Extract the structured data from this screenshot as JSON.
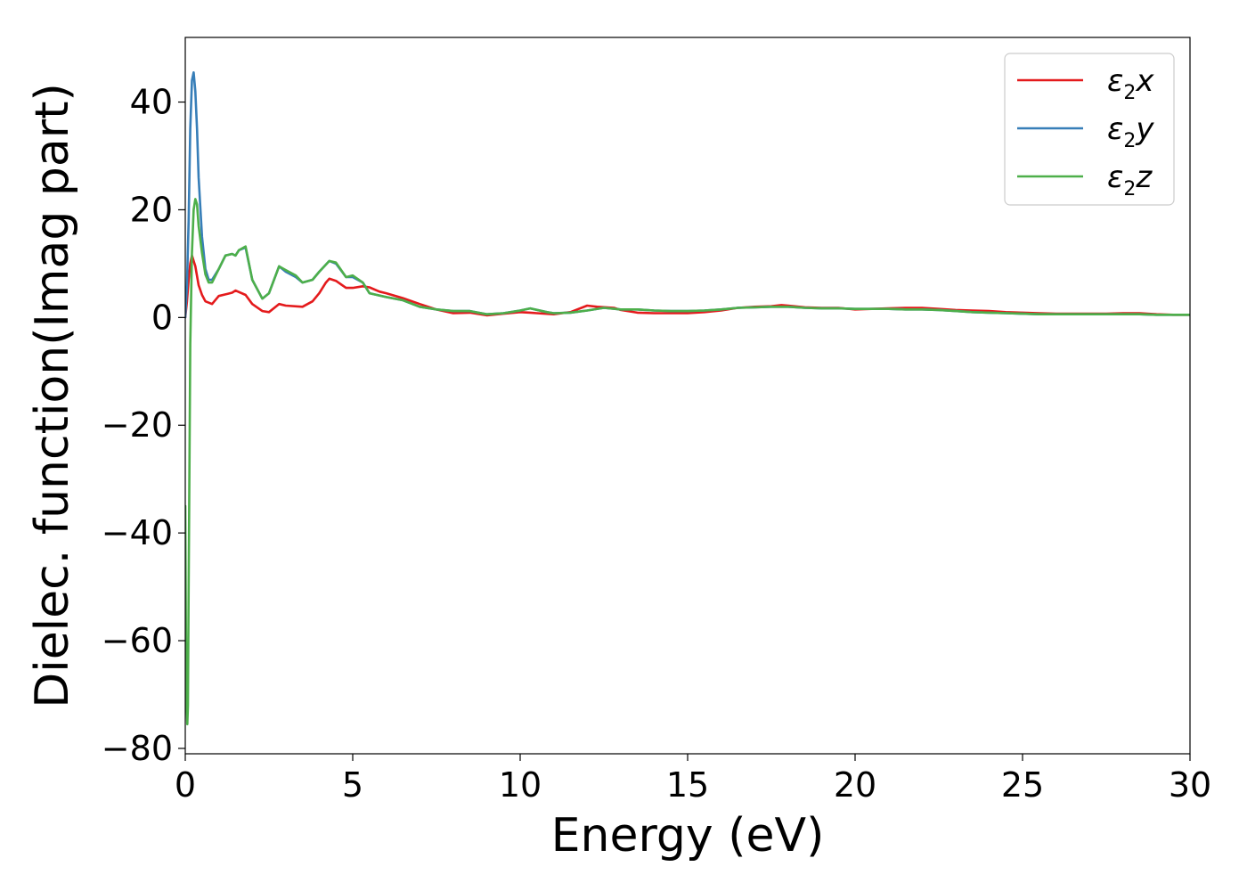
{
  "chart_data": {
    "type": "line",
    "title": "",
    "xlabel": "Energy (eV)",
    "ylabel": "Dielec. function(Imag part)",
    "xlim": [
      0,
      30
    ],
    "ylim": [
      -81,
      52
    ],
    "xticks": [
      0,
      5,
      10,
      15,
      20,
      25,
      30
    ],
    "yticks": [
      -80,
      -60,
      -40,
      -20,
      0,
      20,
      40
    ],
    "xtick_labels": [
      "0",
      "5",
      "10",
      "15",
      "20",
      "25",
      "30"
    ],
    "ytick_labels": [
      "−80",
      "−60",
      "−40",
      "−20",
      "0",
      "20",
      "40"
    ],
    "grid": false,
    "legend_position": "top-right",
    "series": [
      {
        "name": "ε₂x",
        "label_main": "ε",
        "label_sub": "2",
        "label_var": "x",
        "color": "#e41a1c",
        "x": [
          0.0,
          0.05,
          0.1,
          0.15,
          0.2,
          0.3,
          0.4,
          0.5,
          0.6,
          0.8,
          1.0,
          1.2,
          1.4,
          1.5,
          1.8,
          2.0,
          2.3,
          2.5,
          2.8,
          3.0,
          3.5,
          3.8,
          4.0,
          4.2,
          4.3,
          4.5,
          4.8,
          5.0,
          5.3,
          5.5,
          5.8,
          6.0,
          6.5,
          7.0,
          7.5,
          8.0,
          8.5,
          9.0,
          9.5,
          10.0,
          10.3,
          10.5,
          11.0,
          11.5,
          12.0,
          12.3,
          12.8,
          13.0,
          13.5,
          14.0,
          14.5,
          15.0,
          15.5,
          16.0,
          16.5,
          17.0,
          17.5,
          17.8,
          18.0,
          18.5,
          19.0,
          19.5,
          20.0,
          20.5,
          21.0,
          21.5,
          22.0,
          22.5,
          23.0,
          23.5,
          24.0,
          24.5,
          25.0,
          25.5,
          26.0,
          26.5,
          27.0,
          27.5,
          28.0,
          28.5,
          29.0,
          29.5,
          30.0
        ],
        "y": [
          0.0,
          3.0,
          7.0,
          10.0,
          11.5,
          9.5,
          6.0,
          4.2,
          3.0,
          2.5,
          4.0,
          4.3,
          4.6,
          5.0,
          4.2,
          2.5,
          1.2,
          1.0,
          2.5,
          2.2,
          2.0,
          3.0,
          4.5,
          6.5,
          7.2,
          6.8,
          5.5,
          5.5,
          5.8,
          5.6,
          4.8,
          4.5,
          3.6,
          2.5,
          1.5,
          0.8,
          0.9,
          0.4,
          0.7,
          1.0,
          0.9,
          0.8,
          0.6,
          1.0,
          2.2,
          2.0,
          1.8,
          1.4,
          0.9,
          0.8,
          0.8,
          0.8,
          1.0,
          1.3,
          1.8,
          2.0,
          2.1,
          2.3,
          2.2,
          1.9,
          1.8,
          1.8,
          1.5,
          1.6,
          1.7,
          1.8,
          1.8,
          1.6,
          1.4,
          1.3,
          1.2,
          1.0,
          0.9,
          0.8,
          0.7,
          0.7,
          0.7,
          0.7,
          0.8,
          0.8,
          0.6,
          0.5,
          0.5
        ]
      },
      {
        "name": "ε₂y",
        "label_main": "ε",
        "label_sub": "2",
        "label_var": "y",
        "color": "#377eb8",
        "x": [
          0.0,
          0.05,
          0.1,
          0.15,
          0.2,
          0.25,
          0.3,
          0.35,
          0.4,
          0.5,
          0.6,
          0.7,
          0.8,
          1.0,
          1.2,
          1.4,
          1.5,
          1.6,
          1.8,
          2.0,
          2.3,
          2.5,
          2.8,
          3.0,
          3.3,
          3.5,
          3.8,
          4.0,
          4.3,
          4.5,
          4.8,
          5.0,
          5.3,
          5.5,
          6.0,
          6.5,
          7.0,
          7.5,
          8.0,
          8.5,
          9.0,
          9.5,
          10.0,
          10.3,
          10.8,
          11.0,
          11.5,
          12.0,
          12.5,
          13.0,
          13.5,
          14.0,
          14.5,
          15.0,
          15.5,
          16.0,
          16.5,
          17.0,
          17.5,
          18.0,
          18.5,
          19.0,
          19.5,
          20.0,
          20.5,
          21.0,
          21.5,
          22.0,
          22.5,
          23.0,
          23.5,
          24.0,
          24.5,
          25.0,
          25.5,
          26.0,
          26.5,
          27.0,
          27.5,
          28.0,
          28.5,
          29.0,
          29.5,
          30.0
        ],
        "y": [
          0.0,
          6.0,
          18.0,
          35.0,
          44.0,
          45.5,
          42.0,
          35.0,
          26.0,
          15.0,
          9.0,
          7.0,
          7.0,
          9.0,
          11.5,
          11.8,
          11.5,
          12.5,
          13.0,
          7.0,
          3.5,
          4.5,
          9.5,
          8.5,
          7.5,
          6.5,
          7.0,
          8.5,
          10.5,
          10.0,
          7.5,
          7.5,
          6.5,
          4.5,
          3.8,
          3.2,
          2.0,
          1.5,
          1.2,
          1.2,
          0.6,
          0.8,
          1.3,
          1.7,
          1.0,
          0.8,
          0.9,
          1.3,
          1.8,
          1.5,
          1.5,
          1.3,
          1.2,
          1.2,
          1.3,
          1.5,
          1.8,
          1.9,
          2.0,
          2.0,
          1.8,
          1.7,
          1.7,
          1.6,
          1.6,
          1.6,
          1.5,
          1.5,
          1.4,
          1.2,
          1.0,
          0.9,
          0.8,
          0.7,
          0.6,
          0.6,
          0.6,
          0.6,
          0.6,
          0.6,
          0.6,
          0.5,
          0.5,
          0.5
        ]
      },
      {
        "name": "ε₂z",
        "label_main": "ε",
        "label_sub": "2",
        "label_var": "z",
        "color": "#4daf4a",
        "x": [
          0.0,
          0.03,
          0.06,
          0.08,
          0.1,
          0.15,
          0.2,
          0.25,
          0.3,
          0.35,
          0.4,
          0.5,
          0.6,
          0.7,
          0.8,
          1.0,
          1.2,
          1.4,
          1.5,
          1.6,
          1.8,
          2.0,
          2.3,
          2.5,
          2.8,
          3.0,
          3.3,
          3.5,
          3.8,
          4.0,
          4.3,
          4.5,
          4.8,
          5.0,
          5.3,
          5.5,
          6.0,
          6.5,
          7.0,
          7.5,
          8.0,
          8.5,
          9.0,
          9.5,
          10.0,
          10.3,
          10.8,
          11.0,
          11.5,
          12.0,
          12.5,
          13.0,
          13.5,
          14.0,
          14.5,
          15.0,
          15.5,
          16.0,
          16.5,
          17.0,
          17.5,
          18.0,
          18.5,
          19.0,
          19.5,
          20.0,
          20.5,
          21.0,
          21.5,
          22.0,
          22.5,
          23.0,
          23.5,
          24.0,
          24.5,
          25.0,
          25.5,
          26.0,
          26.5,
          27.0,
          27.5,
          28.0,
          28.5,
          29.0,
          29.5,
          30.0
        ],
        "y": [
          -35.0,
          -70.0,
          -75.5,
          -72.0,
          -50.0,
          -5.0,
          12.0,
          20.0,
          22.0,
          21.0,
          17.0,
          12.0,
          8.0,
          6.5,
          6.5,
          9.0,
          11.5,
          11.8,
          11.5,
          12.5,
          13.2,
          7.0,
          3.5,
          4.5,
          9.5,
          8.8,
          7.8,
          6.5,
          7.0,
          8.5,
          10.5,
          10.2,
          7.5,
          7.8,
          6.5,
          4.5,
          3.8,
          3.2,
          2.0,
          1.5,
          1.2,
          1.2,
          0.6,
          0.8,
          1.3,
          1.7,
          1.0,
          0.8,
          0.9,
          1.3,
          1.8,
          1.5,
          1.5,
          1.3,
          1.2,
          1.2,
          1.3,
          1.5,
          1.8,
          1.9,
          2.0,
          2.0,
          1.8,
          1.7,
          1.7,
          1.6,
          1.6,
          1.6,
          1.5,
          1.5,
          1.4,
          1.2,
          1.0,
          0.9,
          0.8,
          0.7,
          0.6,
          0.6,
          0.6,
          0.6,
          0.6,
          0.6,
          0.6,
          0.5,
          0.5,
          0.5
        ]
      }
    ]
  }
}
